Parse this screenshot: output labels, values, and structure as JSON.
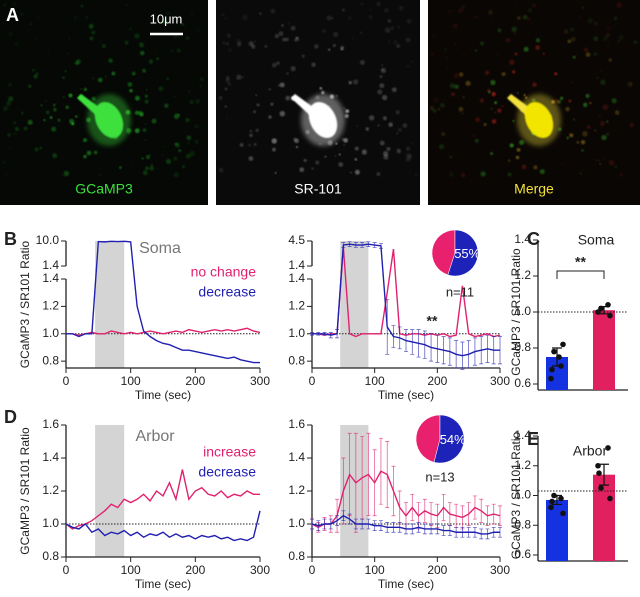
{
  "panels": {
    "labels": [
      "A",
      "B",
      "C",
      "D",
      "E"
    ]
  },
  "images": {
    "scale_bar": "10μm",
    "panels": [
      {
        "label": "GCaMP3",
        "color": "#3ee03e"
      },
      {
        "label": "SR-101",
        "color": "#ffffff"
      },
      {
        "label": "Merge",
        "color": "#f3e23a"
      }
    ]
  },
  "chart_data": [
    {
      "type": "line",
      "title": "Soma",
      "ylabel": "GCaMP3 / SR101 Ratio",
      "xlabel": "Time (sec)",
      "x": [
        0,
        10,
        20,
        30,
        40,
        50,
        60,
        70,
        80,
        90,
        100,
        110,
        120,
        130,
        140,
        150,
        160,
        170,
        180,
        190,
        200,
        210,
        220,
        230,
        240,
        250,
        260,
        270,
        280,
        290,
        300
      ],
      "xlim": [
        0,
        300
      ],
      "xticks": [
        0,
        100,
        200,
        300
      ],
      "ylim": [
        0.75,
        1.4
      ],
      "yticks": [
        0.8,
        {
          "value": 1,
          "label": "1.0"
        },
        1.2,
        1.4
      ],
      "break": {
        "ylim": [
          1.4,
          10
        ],
        "yticks": [
          1.4,
          {
            "value": 10,
            "label": "10.0"
          }
        ]
      },
      "shade": [
        45,
        90
      ],
      "refline": 1.0,
      "series": [
        {
          "name": "no change",
          "color": "#e0226e",
          "values": [
            1.0,
            1.0,
            0.99,
            1.0,
            1.01,
            1.0,
            1.0,
            1.02,
            1.01,
            1.0,
            1.01,
            1.0,
            1.01,
            1.02,
            1.01,
            1.0,
            1.01,
            1.02,
            1.01,
            1.03,
            1.02,
            1.01,
            1.02,
            1.03,
            1.02,
            1.03,
            1.02,
            1.03,
            1.04,
            1.02,
            1.01
          ]
        },
        {
          "name": "decrease",
          "color": "#2020b0",
          "values": [
            1.0,
            1.0,
            0.98,
            1.0,
            1.0,
            9.8,
            9.7,
            9.9,
            9.8,
            9.9,
            9.7,
            1.2,
            1.02,
            0.98,
            0.95,
            0.93,
            0.92,
            0.9,
            0.88,
            0.88,
            0.87,
            0.86,
            0.85,
            0.84,
            0.83,
            0.82,
            0.83,
            0.81,
            0.8,
            0.79,
            0.79
          ]
        }
      ]
    },
    {
      "type": "line",
      "xlabel": "Time (sec)",
      "x": [
        0,
        10,
        20,
        30,
        40,
        50,
        60,
        70,
        80,
        90,
        100,
        110,
        120,
        130,
        140,
        150,
        160,
        170,
        180,
        190,
        200,
        210,
        220,
        230,
        240,
        250,
        260,
        270,
        280,
        290,
        300
      ],
      "xlim": [
        0,
        300
      ],
      "xticks": [
        0,
        100,
        200,
        300
      ],
      "ylim": [
        0.75,
        1.4
      ],
      "yticks": [
        0.8,
        {
          "value": 1,
          "label": "1.0"
        },
        1.2,
        1.4
      ],
      "break": {
        "ylim": [
          1.4,
          4.5
        ],
        "yticks": [
          1.4,
          4.5
        ]
      },
      "shade": [
        45,
        90
      ],
      "refline": 1.0,
      "annotation": "**",
      "pie": {
        "values": [
          45,
          55
        ],
        "colors": [
          "#e8206e",
          "#1d22b8"
        ],
        "value_labels": [
          null,
          "55%"
        ],
        "n_label": "n=11"
      },
      "series": [
        {
          "color": "#e0226e",
          "values": [
            1.0,
            1.0,
            0.99,
            1.0,
            1.0,
            3.8,
            1.0,
            0.98,
            1.0,
            1.0,
            1.0,
            1.0,
            1.3,
            3.5,
            1.0,
            0.99,
            1.0,
            1.0,
            0.99,
            1.0,
            0.99,
            1.0,
            0.98,
            0.99,
            1.35,
            1.0,
            0.98,
            0.99,
            1.0,
            0.98,
            0.99
          ]
        },
        {
          "color": "#2020b0",
          "values": [
            1.0,
            1.0,
            1.0,
            0.99,
            1.0,
            4.0,
            4.1,
            4.0,
            4.0,
            4.1,
            4.0,
            3.9,
            1.05,
            0.98,
            0.97,
            0.95,
            0.94,
            0.93,
            0.92,
            0.9,
            0.89,
            0.88,
            0.87,
            0.85,
            0.84,
            0.85,
            0.87,
            0.88,
            0.89,
            0.88,
            0.88
          ],
          "errors": [
            0.01,
            0.01,
            0.01,
            0.02,
            0.03,
            0.3,
            0.3,
            0.3,
            0.3,
            0.3,
            0.3,
            0.3,
            0.2,
            0.08,
            0.08,
            0.08,
            0.09,
            0.1,
            0.1,
            0.1,
            0.1,
            0.1,
            0.1,
            0.1,
            0.1,
            0.1,
            0.1,
            0.1,
            0.1,
            0.1,
            0.1
          ]
        }
      ]
    },
    {
      "type": "bar",
      "title": "Soma",
      "ylabel": "GCaMP3 / SR101 Ratio",
      "ylim": [
        0.6,
        1.4
      ],
      "yticks": [
        0.6,
        0.8,
        {
          "value": 1,
          "label": "1.0"
        },
        1.2,
        1.4
      ],
      "refline": 1.0,
      "values": [
        0.75,
        1.01
      ],
      "errors": [
        0.05,
        0.02
      ],
      "colors": [
        "#1532e0",
        "#e0205f"
      ],
      "points": [
        [
          0.63,
          0.7,
          0.78,
          0.82,
          0.68,
          0.75
        ],
        [
          1.0,
          1.04,
          1.02,
          0.98
        ]
      ],
      "annotation": "**"
    },
    {
      "type": "line",
      "title": "Arbor",
      "ylabel": "GCaMP3 / SR101 Ratio",
      "xlabel": "Time (sec)",
      "x": [
        0,
        10,
        20,
        30,
        40,
        50,
        60,
        70,
        80,
        90,
        100,
        110,
        120,
        130,
        140,
        150,
        160,
        170,
        180,
        190,
        200,
        210,
        220,
        230,
        240,
        250,
        260,
        270,
        280,
        290,
        300
      ],
      "xlim": [
        0,
        300
      ],
      "xticks": [
        0,
        100,
        200,
        300
      ],
      "ylim": [
        0.8,
        1.6
      ],
      "yticks": [
        0.8,
        {
          "value": 1,
          "label": "1.0"
        },
        1.2,
        1.4,
        1.6
      ],
      "shade": [
        45,
        90
      ],
      "refline": 1.0,
      "series": [
        {
          "name": "increase",
          "color": "#e0226e",
          "values": [
            1.0,
            0.97,
            0.99,
            1.0,
            1.02,
            1.05,
            1.08,
            1.12,
            1.1,
            1.15,
            1.13,
            1.15,
            1.18,
            1.14,
            1.2,
            1.17,
            1.25,
            1.15,
            1.33,
            1.15,
            1.2,
            1.22,
            1.18,
            1.17,
            1.2,
            1.16,
            1.18,
            1.17,
            1.2,
            1.18,
            1.18
          ]
        },
        {
          "name": "decrease",
          "color": "#2020b0",
          "values": [
            1.0,
            0.98,
            0.97,
            1.0,
            0.95,
            0.97,
            0.93,
            0.95,
            0.94,
            0.96,
            0.93,
            0.95,
            0.92,
            0.94,
            0.93,
            0.95,
            0.92,
            0.94,
            0.92,
            0.93,
            0.91,
            0.93,
            0.92,
            0.93,
            0.91,
            0.92,
            0.9,
            0.91,
            0.9,
            0.92,
            1.08
          ]
        }
      ]
    },
    {
      "type": "line",
      "xlabel": "Time (sec)",
      "x": [
        0,
        10,
        20,
        30,
        40,
        50,
        60,
        70,
        80,
        90,
        100,
        110,
        120,
        130,
        140,
        150,
        160,
        170,
        180,
        190,
        200,
        210,
        220,
        230,
        240,
        250,
        260,
        270,
        280,
        290,
        300
      ],
      "xlim": [
        0,
        300
      ],
      "xticks": [
        0,
        100,
        200,
        300
      ],
      "ylim": [
        0.8,
        1.6
      ],
      "yticks": [
        0.8,
        {
          "value": 1,
          "label": "1.0"
        },
        1.2,
        1.4,
        1.6
      ],
      "shade": [
        45,
        90
      ],
      "refline": 1.0,
      "pie": {
        "values": [
          46,
          54
        ],
        "colors": [
          "#e8206e",
          "#1d22b8"
        ],
        "value_labels": [
          null,
          "54%"
        ],
        "n_label": "n=13"
      },
      "series": [
        {
          "color": "#e0226e",
          "values": [
            1.0,
            0.98,
            1.0,
            1.0,
            1.05,
            1.2,
            1.3,
            1.25,
            1.28,
            1.3,
            1.25,
            1.32,
            1.3,
            1.2,
            1.1,
            1.05,
            1.1,
            1.05,
            1.08,
            1.06,
            1.05,
            1.1,
            1.06,
            1.05,
            1.04,
            1.06,
            1.1,
            1.08,
            1.05,
            1.06,
            1.05
          ],
          "errors": [
            0.03,
            0.03,
            0.04,
            0.05,
            0.1,
            0.2,
            0.25,
            0.3,
            0.25,
            0.25,
            0.2,
            0.2,
            0.2,
            0.15,
            0.1,
            0.08,
            0.08,
            0.08,
            0.07,
            0.07,
            0.07,
            0.08,
            0.07,
            0.07,
            0.07,
            0.07,
            0.07,
            0.07,
            0.06,
            0.06,
            0.06
          ]
        },
        {
          "color": "#2020b0",
          "values": [
            1.0,
            0.99,
            1.0,
            1.0,
            1.02,
            1.05,
            1.03,
            1.0,
            1.0,
            1.0,
            0.99,
            0.99,
            0.98,
            0.98,
            0.98,
            0.97,
            0.97,
            0.98,
            0.97,
            0.97,
            0.97,
            0.96,
            0.96,
            0.95,
            0.95,
            0.95,
            0.95,
            0.94,
            0.94,
            0.95,
            0.95
          ],
          "errors": [
            0.03,
            0.03,
            0.03,
            0.03,
            0.03,
            0.03,
            0.03,
            0.03,
            0.03,
            0.03,
            0.03,
            0.03,
            0.03,
            0.03,
            0.03,
            0.03,
            0.03,
            0.03,
            0.03,
            0.03,
            0.03,
            0.03,
            0.03,
            0.03,
            0.03,
            0.03,
            0.03,
            0.03,
            0.03,
            0.03,
            0.03
          ]
        }
      ]
    },
    {
      "type": "bar",
      "title": "Arbor",
      "ylabel": "GCaMP3 / SR101 Ratio",
      "ylim": [
        0.6,
        1.4
      ],
      "yticks": [
        0.6,
        0.8,
        {
          "value": 1,
          "label": "1.0"
        },
        1.2,
        1.4
      ],
      "refline": 1.03,
      "values": [
        0.97,
        1.14
      ],
      "errors": [
        0.03,
        0.07
      ],
      "colors": [
        "#1532e0",
        "#e0205f"
      ],
      "points": [
        [
          0.92,
          0.98,
          1.0,
          0.88,
          0.96
        ],
        [
          1.2,
          1.32,
          1.05,
          0.98,
          1.15
        ]
      ]
    }
  ]
}
